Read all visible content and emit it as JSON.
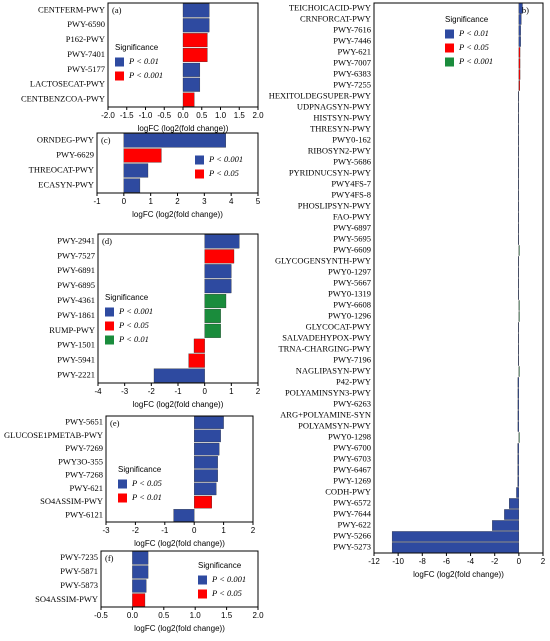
{
  "chart_data": [
    {
      "type": "barh",
      "title": "(a)",
      "xlabel": "logFC (log2(fold change))",
      "legend_title": "Significance",
      "categories": [
        "CENTFERM-PWY",
        "PWY-6590",
        "P162-PWY",
        "PWY-7401",
        "PWY-5177",
        "LACTOSECAT-PWY",
        "CENTBENZCOA-PWY"
      ],
      "series": [
        {
          "name": "P < 0.01",
          "color": "#2e4aa0",
          "values": [
            0.7,
            0.7,
            null,
            null,
            0.45,
            0.45,
            null
          ]
        },
        {
          "name": "P < 0.001",
          "color": "#ff0000",
          "values": [
            null,
            null,
            0.65,
            0.65,
            null,
            null,
            0.3
          ]
        }
      ],
      "xlim": [
        -2,
        2
      ],
      "xticks": [
        {
          "value": -2,
          "label": "-2.0"
        },
        -1.5,
        {
          "value": -1,
          "label": "-1.0"
        },
        -0.5,
        {
          "value": 0,
          "label": "0.0"
        },
        0.5,
        {
          "value": 1,
          "label": "1.0"
        },
        1.5,
        {
          "value": 2,
          "label": "2.0"
        }
      ]
    },
    {
      "type": "barh",
      "title": "(b)",
      "xlabel": "logFC (log2(fold change))",
      "legend_title": "Significance",
      "categories": [
        "TEICHOICACID-PWY",
        "CRNFORCAT-PWY",
        "PWY-7616",
        "PWY-7446",
        "PWY-621",
        "PWY-7007",
        "PWY-6383",
        "PWY-7255",
        "HEXITOLDEGSUPER-PWY",
        "UDPNAGSYN-PWY",
        "HISTSYN-PWY",
        "THRESYN-PWY",
        "PWY0-162",
        "RIBOSYN2-PWY",
        "PWY-5686",
        "PYRIDNUCSYN-PWY",
        "PWY4FS-7",
        "PWY4FS-8",
        "PHOSLIPSYN-PWY",
        "FAO-PWY",
        "PWY-6897",
        "PWY-5695",
        "PWY-6609",
        "GLYCOGENSYNTH-PWY",
        "PWY0-1297",
        "PWY-5667",
        "PWY0-1319",
        "PWY-6608",
        "PWY0-1296",
        "GLYCOCAT-PWY",
        "SALVADEHYPOX-PWY",
        "TRNA-CHARGING-PWY",
        "PWY-7196",
        "NAGLIPASYN-PWY",
        "P42-PWY",
        "POLYAMINSYN3-PWY",
        "PWY-6263",
        "ARG+POLYAMINE-SYN",
        "POLYAMSYN-PWY",
        "PWY0-1298",
        "PWY-6700",
        "PWY-6703",
        "PWY-6467",
        "PWY-1269",
        "CODH-PWY",
        "PWY-6572",
        "PWY-7644",
        "PWY-622",
        "PWY-5266",
        "PWY-5273"
      ],
      "series": [
        {
          "name": "P < 0.01",
          "color": "#2e4aa0",
          "values": [
            0.3,
            0.2,
            0.15,
            0.15,
            null,
            null,
            null,
            null,
            -0.05,
            -0.05,
            -0.05,
            -0.05,
            -0.05,
            -0.05,
            -0.05,
            -0.05,
            -0.05,
            -0.05,
            -0.05,
            -0.05,
            -0.05,
            -0.05,
            null,
            -0.05,
            -0.05,
            -0.05,
            -0.05,
            null,
            null,
            -0.05,
            -0.05,
            -0.05,
            -0.05,
            null,
            -0.08,
            -0.08,
            -0.08,
            -0.08,
            -0.08,
            null,
            -0.1,
            -0.1,
            -0.1,
            -0.1,
            -0.2,
            -0.8,
            -1.2,
            -2.2,
            -10.5,
            -10.5
          ]
        },
        {
          "name": "P < 0.05",
          "color": "#ff0000",
          "values": [
            null,
            null,
            null,
            null,
            0.1,
            0.1,
            0.1,
            0.08,
            null,
            null,
            null,
            null,
            null,
            null,
            null,
            null,
            null,
            null,
            null,
            null,
            null,
            null,
            null,
            null,
            null,
            null,
            null,
            null,
            null,
            null,
            null,
            null,
            null,
            null,
            null,
            null,
            null,
            null,
            null,
            null,
            null,
            null,
            null,
            null,
            null,
            null,
            null,
            null,
            null,
            null
          ]
        },
        {
          "name": "P < 0.001",
          "color": "#1a8c3c",
          "values": [
            null,
            null,
            null,
            null,
            null,
            null,
            null,
            null,
            null,
            null,
            null,
            null,
            null,
            null,
            null,
            null,
            null,
            null,
            null,
            null,
            null,
            null,
            0.05,
            null,
            null,
            null,
            null,
            0.05,
            0.05,
            null,
            null,
            null,
            null,
            0.05,
            null,
            null,
            null,
            null,
            null,
            0.05,
            null,
            null,
            null,
            null,
            null,
            null,
            null,
            null,
            null,
            null
          ]
        }
      ],
      "xlim": [
        -12,
        2
      ],
      "xticks": [
        -12,
        -10,
        -8,
        -6,
        -4,
        -2,
        0,
        2
      ]
    },
    {
      "type": "barh",
      "title": "(c)",
      "xlabel": "logFC (log2(fold change))",
      "categories": [
        "ORNDEG-PWY",
        "PWY-6629",
        "THREOCAT-PWY",
        "ECASYN-PWY"
      ],
      "series": [
        {
          "name": "P < 0.001",
          "color": "#2e4aa0",
          "values": [
            3.8,
            null,
            0.9,
            0.6
          ]
        },
        {
          "name": "P < 0.05",
          "color": "#ff0000",
          "values": [
            null,
            1.4,
            null,
            null
          ]
        }
      ],
      "xlim": [
        -1,
        5
      ],
      "xticks": [
        -1,
        0,
        1,
        2,
        3,
        4,
        5
      ]
    },
    {
      "type": "barh",
      "title": "(d)",
      "xlabel": "logFC (log2(fold change))",
      "legend_title": "Significance",
      "categories": [
        "PWY-2941",
        "PWY-7527",
        "PWY-6891",
        "PWY-6895",
        "PWY-4361",
        "PWY-1861",
        "RUMP-PWY",
        "PWY-1501",
        "PWY-5941",
        "PWY-2221"
      ],
      "series": [
        {
          "name": "P < 0.001",
          "color": "#2e4aa0",
          "values": [
            1.3,
            null,
            1.0,
            1.0,
            null,
            null,
            null,
            null,
            null,
            -1.9
          ]
        },
        {
          "name": "P < 0.05",
          "color": "#ff0000",
          "values": [
            null,
            1.1,
            null,
            null,
            null,
            null,
            null,
            -0.4,
            -0.6,
            null
          ]
        },
        {
          "name": "P < 0.01",
          "color": "#1a8c3c",
          "values": [
            null,
            null,
            null,
            null,
            0.8,
            0.6,
            0.6,
            null,
            null,
            null
          ]
        }
      ],
      "xlim": [
        -4,
        2
      ],
      "xticks": [
        -4,
        -3,
        -2,
        -1,
        0,
        1,
        2
      ]
    },
    {
      "type": "barh",
      "title": "(e)",
      "xlabel": "logFC (log2(fold change))",
      "legend_title": "Significance",
      "categories": [
        "PWY-5651",
        "GLUCOSE1PMETAB-PWY",
        "PWY-7269",
        "PWY3O-355",
        "PWY-7268",
        "PWY-621",
        "SO4ASSIM-PWY",
        "PWY-6121"
      ],
      "series": [
        {
          "name": "P < 0.05",
          "color": "#2e4aa0",
          "values": [
            1.0,
            0.9,
            0.85,
            0.8,
            0.8,
            0.75,
            null,
            -0.7
          ]
        },
        {
          "name": "P < 0.01",
          "color": "#ff0000",
          "values": [
            null,
            null,
            null,
            null,
            null,
            null,
            0.6,
            null
          ]
        }
      ],
      "xlim": [
        -3,
        2
      ],
      "xticks": [
        -3,
        -2,
        -1,
        0,
        1,
        2
      ]
    },
    {
      "type": "barh",
      "title": "(f)",
      "xlabel": "logFC (log2(fold change))",
      "legend_title": "Significance",
      "categories": [
        "PWY-7235",
        "PWY-5871",
        "PWY-5873",
        "SO4ASSIM-PWY"
      ],
      "series": [
        {
          "name": "P < 0.001",
          "color": "#2e4aa0",
          "values": [
            0.25,
            0.25,
            0.22,
            null
          ]
        },
        {
          "name": "P < 0.05",
          "color": "#ff0000",
          "values": [
            null,
            null,
            null,
            0.2
          ]
        }
      ],
      "xlim": [
        -0.5,
        2
      ],
      "xticks": [
        -0.5,
        {
          "value": 0,
          "label": "0.0"
        },
        0.5,
        {
          "value": 1,
          "label": "1.0"
        },
        1.5,
        {
          "value": 2,
          "label": "2.0"
        }
      ]
    }
  ]
}
